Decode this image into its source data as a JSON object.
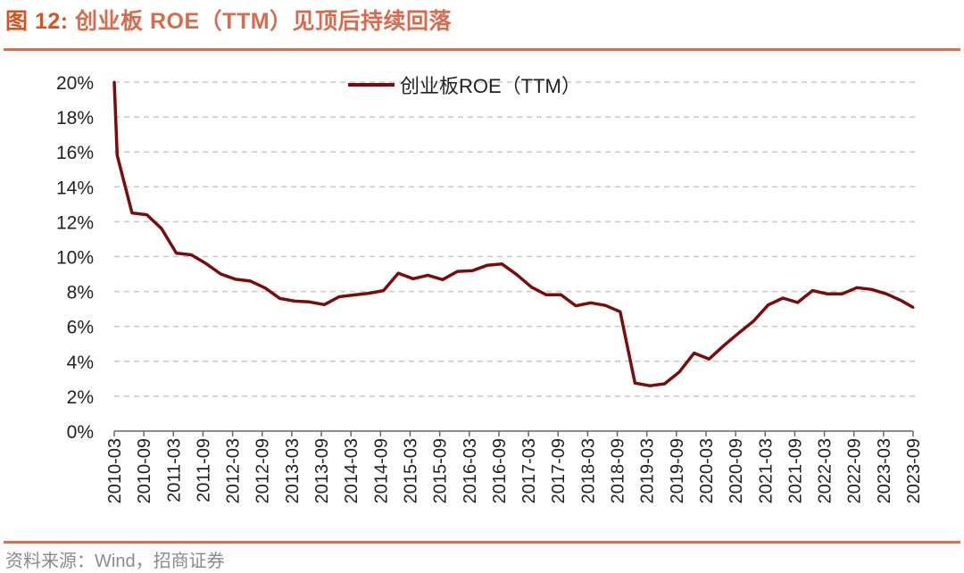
{
  "header": {
    "figure_label": "图 12:",
    "title": "创业板 ROE（TTM）见顶后持续回落"
  },
  "footer": {
    "source": "资料来源：Wind，招商证券"
  },
  "colors": {
    "series": "#7B0C0C",
    "title": "#D86B4E",
    "title_label": "#D9531E",
    "rule": "#D9704F",
    "grid": "#C8C8C8"
  },
  "chart_data": {
    "type": "line",
    "title": "创业板 ROE（TTM）见顶后持续回落",
    "xlabel": "",
    "ylabel": "",
    "ylim": [
      0,
      20
    ],
    "y_ticks": [
      "0%",
      "2%",
      "4%",
      "6%",
      "8%",
      "10%",
      "12%",
      "14%",
      "16%",
      "18%",
      "20%"
    ],
    "y_tick_values": [
      0,
      2,
      4,
      6,
      8,
      10,
      12,
      14,
      16,
      18,
      20
    ],
    "x_ticks": [
      "2010-03",
      "2010-09",
      "2011-03",
      "2011-09",
      "2012-03",
      "2012-09",
      "2013-03",
      "2013-09",
      "2014-03",
      "2014-09",
      "2015-03",
      "2015-09",
      "2016-03",
      "2016-09",
      "2017-03",
      "2017-09",
      "2018-03",
      "2018-09",
      "2019-03",
      "2019-09",
      "2020-03",
      "2020-09",
      "2021-03",
      "2021-09",
      "2022-03",
      "2022-09",
      "2023-03",
      "2023-09"
    ],
    "x_unit": "quarters since 2010-03",
    "xlim": [
      0,
      54
    ],
    "grid": "horizontal dashed",
    "legend": {
      "position": "top-center",
      "entries": [
        "创业板ROE（TTM）"
      ]
    },
    "series": [
      {
        "name": "创业板ROE（TTM）",
        "x": [
          0,
          0.2,
          1.2,
          2.2,
          3.2,
          4.2,
          5.2,
          6.2,
          7.2,
          8.2,
          9.2,
          10.2,
          11.2,
          12.2,
          13.2,
          14.2,
          15.2,
          16.2,
          17.2,
          18.2,
          19.2,
          20.2,
          21.2,
          22.2,
          23.2,
          24.2,
          25.2,
          26.2,
          27.2,
          28.2,
          29.2,
          30.2,
          31.2,
          32.2,
          33.2,
          34.2,
          35.2,
          36.2,
          37.2,
          38.2,
          39.2,
          40.2,
          41.2,
          42.2,
          43.2,
          44.2,
          45.2,
          46.2,
          47.2,
          48.2,
          49.2,
          50.2,
          51.2,
          52.2,
          53.2,
          54
        ],
        "values": [
          20.0,
          15.8,
          12.5,
          12.4,
          11.6,
          10.2,
          10.1,
          9.6,
          9.0,
          8.7,
          8.6,
          8.2,
          7.6,
          7.45,
          7.4,
          7.25,
          7.7,
          7.8,
          7.9,
          8.05,
          9.05,
          8.73,
          8.93,
          8.68,
          9.15,
          9.19,
          9.5,
          9.58,
          8.97,
          8.25,
          7.81,
          7.81,
          7.18,
          7.35,
          7.2,
          6.84,
          2.75,
          2.6,
          2.71,
          3.39,
          4.47,
          4.13,
          4.9,
          5.61,
          6.29,
          7.23,
          7.62,
          7.37,
          8.05,
          7.86,
          7.86,
          8.22,
          8.12,
          7.86,
          7.48,
          7.09
        ]
      }
    ]
  }
}
